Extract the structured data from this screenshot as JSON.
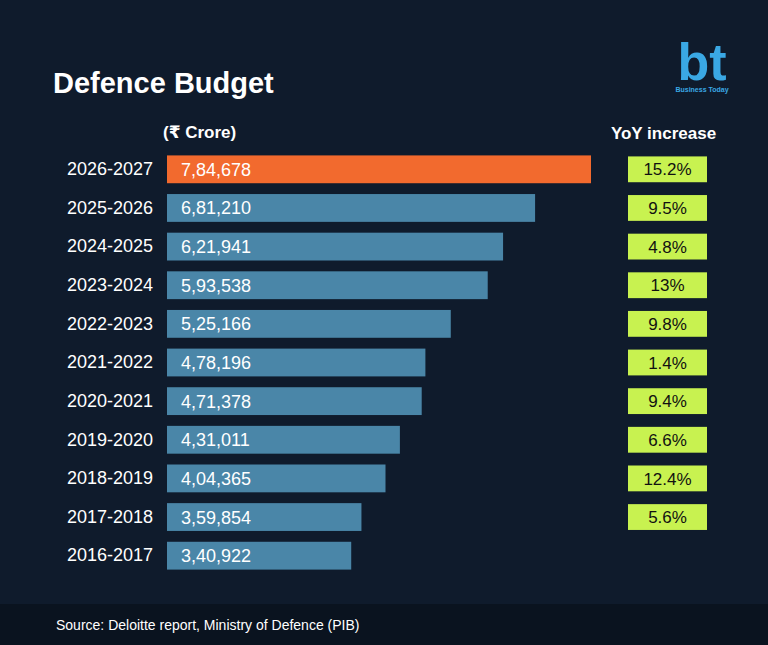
{
  "chart_data": {
    "type": "bar",
    "title": "Defence Budget",
    "subtitle": "(₹ Crore)",
    "source": "Source: Deloitte report, Ministry of Defence (PIB)",
    "logo": {
      "text": "bt",
      "caption": "Business Today"
    },
    "orientation": "horizontal",
    "data_labels": true,
    "tick_labels": "y",
    "grid": false,
    "categories": [
      "2026-2027",
      "2025-2026",
      "2024-2025",
      "2023-2024",
      "2022-2023",
      "2021-2022",
      "2020-2021",
      "2019-2020",
      "2018-2019",
      "2017-2018",
      "2016-2017"
    ],
    "values": [
      784678,
      681210,
      621941,
      593538,
      525166,
      478196,
      471378,
      431011,
      404365,
      359854,
      340922
    ],
    "value_labels": [
      "7,84,678",
      "6,81,210",
      "6,21,941",
      "5,93,538",
      "5,25,166",
      "4,78,196",
      "4,71,378",
      "4,31,011",
      "4,04,365",
      "3,59,854",
      "3,40,922"
    ],
    "colors": [
      "#f26a2e",
      "#4a86a8",
      "#4a86a8",
      "#4a86a8",
      "#4a86a8",
      "#4a86a8",
      "#4a86a8",
      "#4a86a8",
      "#4a86a8",
      "#4a86a8",
      "#4a86a8"
    ],
    "xlim": [
      0,
      784678
    ],
    "yoy": {
      "title": "YoY increase",
      "color": "#c8f250",
      "values": [
        15.2,
        9.5,
        4.8,
        13,
        9.8,
        1.4,
        9.4,
        6.6,
        12.4,
        5.6,
        null
      ],
      "value_labels": [
        "15.2%",
        "9.5%",
        "4.8%",
        "13%",
        "9.8%",
        "1.4%",
        "9.4%",
        "6.6%",
        "12.4%",
        "5.6%",
        null
      ]
    }
  }
}
